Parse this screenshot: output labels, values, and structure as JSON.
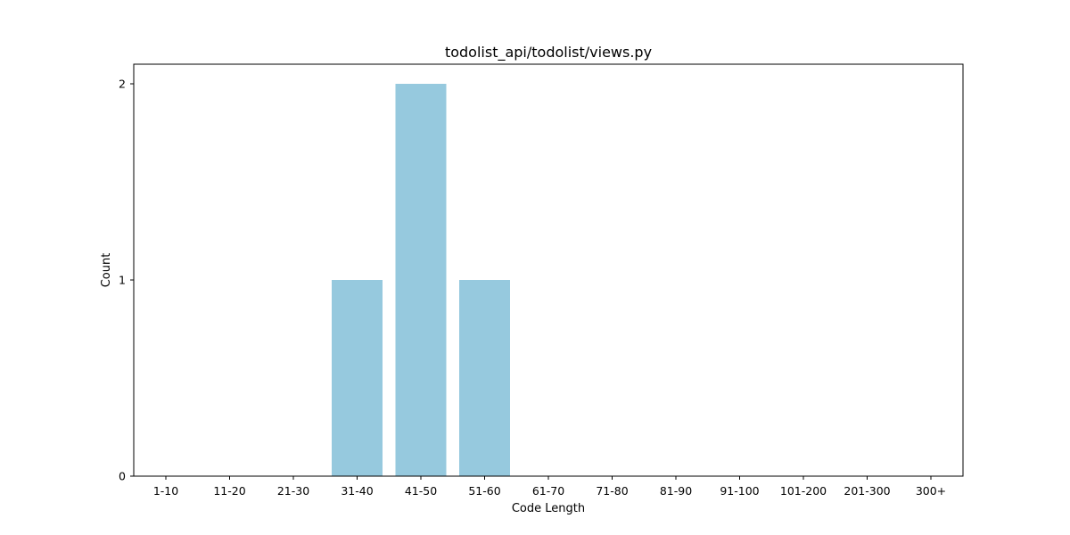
{
  "chart_data": {
    "type": "bar",
    "title": "todolist_api/todolist/views.py",
    "xlabel": "Code Length",
    "ylabel": "Count",
    "categories": [
      "1-10",
      "11-20",
      "21-30",
      "31-40",
      "41-50",
      "51-60",
      "61-70",
      "71-80",
      "81-90",
      "91-100",
      "101-200",
      "201-300",
      "300+"
    ],
    "values": [
      0,
      0,
      0,
      1,
      2,
      1,
      0,
      0,
      0,
      0,
      0,
      0,
      0
    ],
    "yticks": [
      0,
      1,
      2
    ],
    "ylim": [
      0,
      2.1
    ],
    "bar_color": "#96c9de",
    "grid": false,
    "legend": "none"
  }
}
